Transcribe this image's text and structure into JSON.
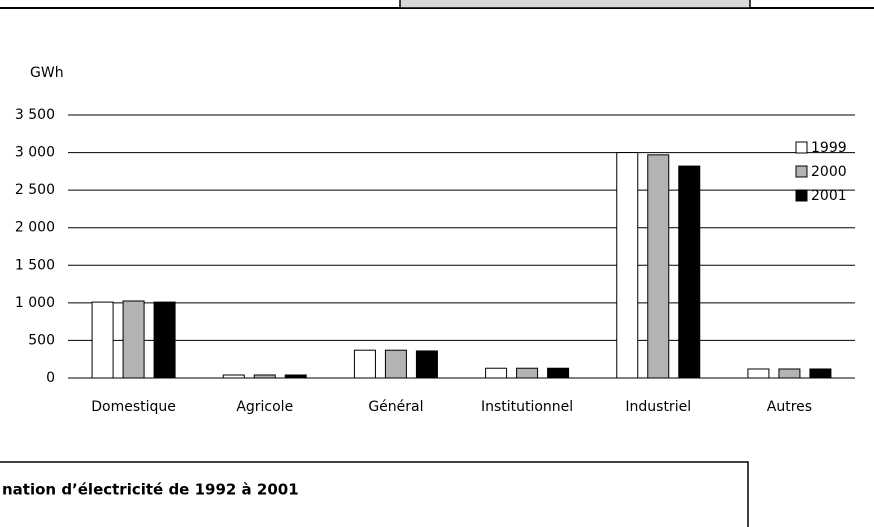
{
  "chart_data": {
    "type": "bar",
    "y_label": "GWh",
    "categories": [
      "Domestique",
      "Agricole",
      "Général",
      "Institutionnel",
      "Industriel",
      "Autres"
    ],
    "series": [
      {
        "name": "1999",
        "color": "#ffffff",
        "values": [
          1010,
          40,
          370,
          130,
          3000,
          120
        ]
      },
      {
        "name": "2000",
        "color": "#b3b3b3",
        "values": [
          1025,
          40,
          370,
          130,
          2970,
          120
        ]
      },
      {
        "name": "2001",
        "color": "#000000",
        "values": [
          1010,
          40,
          360,
          130,
          2820,
          120
        ]
      }
    ],
    "ylim": [
      0,
      3500
    ],
    "yticks": [
      0,
      500,
      {
        "value": 1000,
        "label": "1 000"
      },
      {
        "value": 1500,
        "label": "1 500"
      },
      {
        "value": 2000,
        "label": "2 000"
      },
      {
        "value": 2500,
        "label": "2 500"
      },
      {
        "value": 3000,
        "label": "3 000"
      },
      {
        "value": 3500,
        "label": "3 500"
      }
    ],
    "grid": true,
    "legend": "upper right"
  },
  "section_heading": "nation d’électricité de 1992 à 2001"
}
